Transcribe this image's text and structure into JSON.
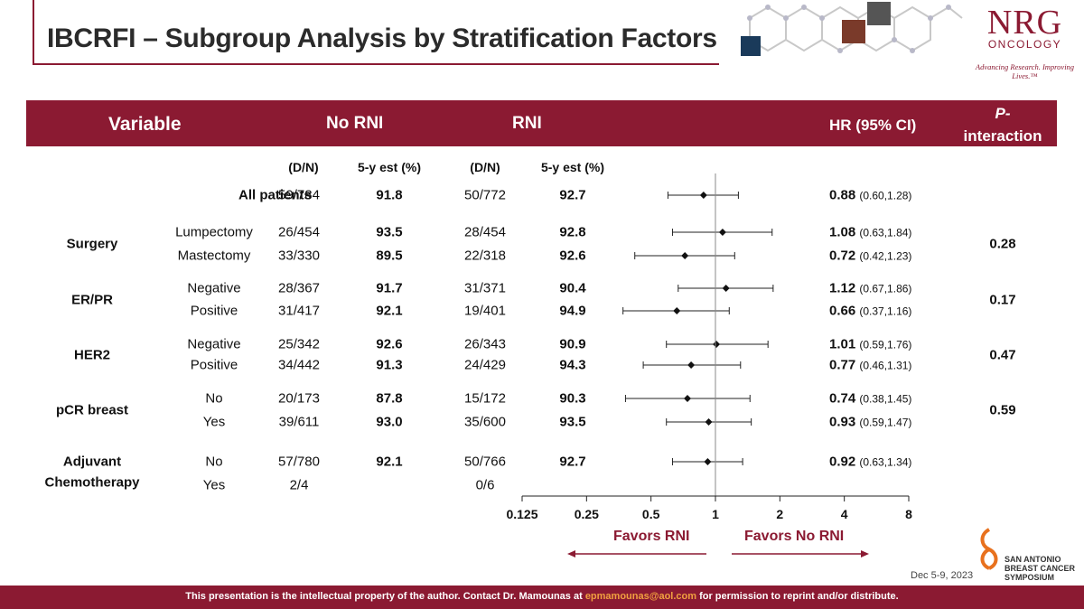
{
  "title": "IBCRFI – Subgroup Analysis by Stratification Factors",
  "logo": {
    "brand": "NRG",
    "sub": "ONCOLOGY",
    "tagline": "Advancing Research. Improving Lives.™"
  },
  "header": {
    "variable": "Variable",
    "no_rni": "No RNI",
    "rni": "RNI",
    "hr": "HR (95% CI)",
    "p_line1": "P-",
    "p_line2": "interaction"
  },
  "subheader": {
    "dn1": "(D/N)",
    "est1": "5-y est (%)",
    "dn2": "(D/N)",
    "est2": "5-y est (%)"
  },
  "chart_data": {
    "type": "forest",
    "x_scale": "log2",
    "xlim": [
      0.125,
      8
    ],
    "reference_line": 1,
    "x_ticks": [
      "0.125",
      "0.25",
      "0.5",
      "1",
      "2",
      "4",
      "8"
    ],
    "groups": [
      {
        "label": "",
        "p": "",
        "rows": [
          {
            "sub": "All patients",
            "no_dn": "59/784",
            "no_est": "91.8",
            "rni_dn": "50/772",
            "rni_est": "92.7",
            "hr": 0.88,
            "lo": 0.6,
            "hi": 1.28,
            "hr_text": "0.88",
            "ci_text": "(0.60,1.28)"
          }
        ]
      },
      {
        "label": "Surgery",
        "p": "0.28",
        "rows": [
          {
            "sub": "Lumpectomy",
            "no_dn": "26/454",
            "no_est": "93.5",
            "rni_dn": "28/454",
            "rni_est": "92.8",
            "hr": 1.08,
            "lo": 0.63,
            "hi": 1.84,
            "hr_text": "1.08",
            "ci_text": "(0.63,1.84)"
          },
          {
            "sub": "Mastectomy",
            "no_dn": "33/330",
            "no_est": "89.5",
            "rni_dn": "22/318",
            "rni_est": "92.6",
            "hr": 0.72,
            "lo": 0.42,
            "hi": 1.23,
            "hr_text": "0.72",
            "ci_text": "(0.42,1.23)"
          }
        ]
      },
      {
        "label": "ER/PR",
        "p": "0.17",
        "rows": [
          {
            "sub": "Negative",
            "no_dn": "28/367",
            "no_est": "91.7",
            "rni_dn": "31/371",
            "rni_est": "90.4",
            "hr": 1.12,
            "lo": 0.67,
            "hi": 1.86,
            "hr_text": "1.12",
            "ci_text": "(0.67,1.86)"
          },
          {
            "sub": "Positive",
            "no_dn": "31/417",
            "no_est": "92.1",
            "rni_dn": "19/401",
            "rni_est": "94.9",
            "hr": 0.66,
            "lo": 0.37,
            "hi": 1.16,
            "hr_text": "0.66",
            "ci_text": "(0.37,1.16)"
          }
        ]
      },
      {
        "label": "HER2",
        "p": "0.47",
        "rows": [
          {
            "sub": "Negative",
            "no_dn": "25/342",
            "no_est": "92.6",
            "rni_dn": "26/343",
            "rni_est": "90.9",
            "hr": 1.01,
            "lo": 0.59,
            "hi": 1.76,
            "hr_text": "1.01",
            "ci_text": "(0.59,1.76)"
          },
          {
            "sub": "Positive",
            "no_dn": "34/442",
            "no_est": "91.3",
            "rni_dn": "24/429",
            "rni_est": "94.3",
            "hr": 0.77,
            "lo": 0.46,
            "hi": 1.31,
            "hr_text": "0.77",
            "ci_text": "(0.46,1.31)"
          }
        ]
      },
      {
        "label": "pCR breast",
        "p": "0.59",
        "rows": [
          {
            "sub": "No",
            "no_dn": "20/173",
            "no_est": "87.8",
            "rni_dn": "15/172",
            "rni_est": "90.3",
            "hr": 0.74,
            "lo": 0.38,
            "hi": 1.45,
            "hr_text": "0.74",
            "ci_text": "(0.38,1.45)"
          },
          {
            "sub": "Yes",
            "no_dn": "39/611",
            "no_est": "93.0",
            "rni_dn": "35/600",
            "rni_est": "93.5",
            "hr": 0.93,
            "lo": 0.59,
            "hi": 1.47,
            "hr_text": "0.93",
            "ci_text": "(0.59,1.47)"
          }
        ]
      },
      {
        "label": "Adjuvant Chemotherapy",
        "p": "",
        "rows": [
          {
            "sub": "No",
            "no_dn": "57/780",
            "no_est": "92.1",
            "rni_dn": "50/766",
            "rni_est": "92.7",
            "hr": 0.92,
            "lo": 0.63,
            "hi": 1.34,
            "hr_text": "0.92",
            "ci_text": "(0.63,1.34)"
          },
          {
            "sub": "Yes",
            "no_dn": "2/4",
            "no_est": "",
            "rni_dn": "0/6",
            "rni_est": "",
            "hr": null,
            "lo": null,
            "hi": null,
            "hr_text": "",
            "ci_text": ""
          }
        ]
      }
    ]
  },
  "favors": {
    "left": "Favors RNI",
    "right": "Favors No RNI"
  },
  "date": "Dec 5-9, 2023",
  "sabcs": {
    "line1": "SAN ANTONIO",
    "line2": "BREAST CANCER",
    "line3": "SYMPOSIUM"
  },
  "footer": {
    "before": "This presentation is the intellectual property of the author.  Contact Dr. Mamounas at ",
    "email": "epmamounas@aol.com",
    "after": " for permission to reprint and/or distribute."
  },
  "colors": {
    "accent": "#8b1a32",
    "email": "#f0a040"
  }
}
